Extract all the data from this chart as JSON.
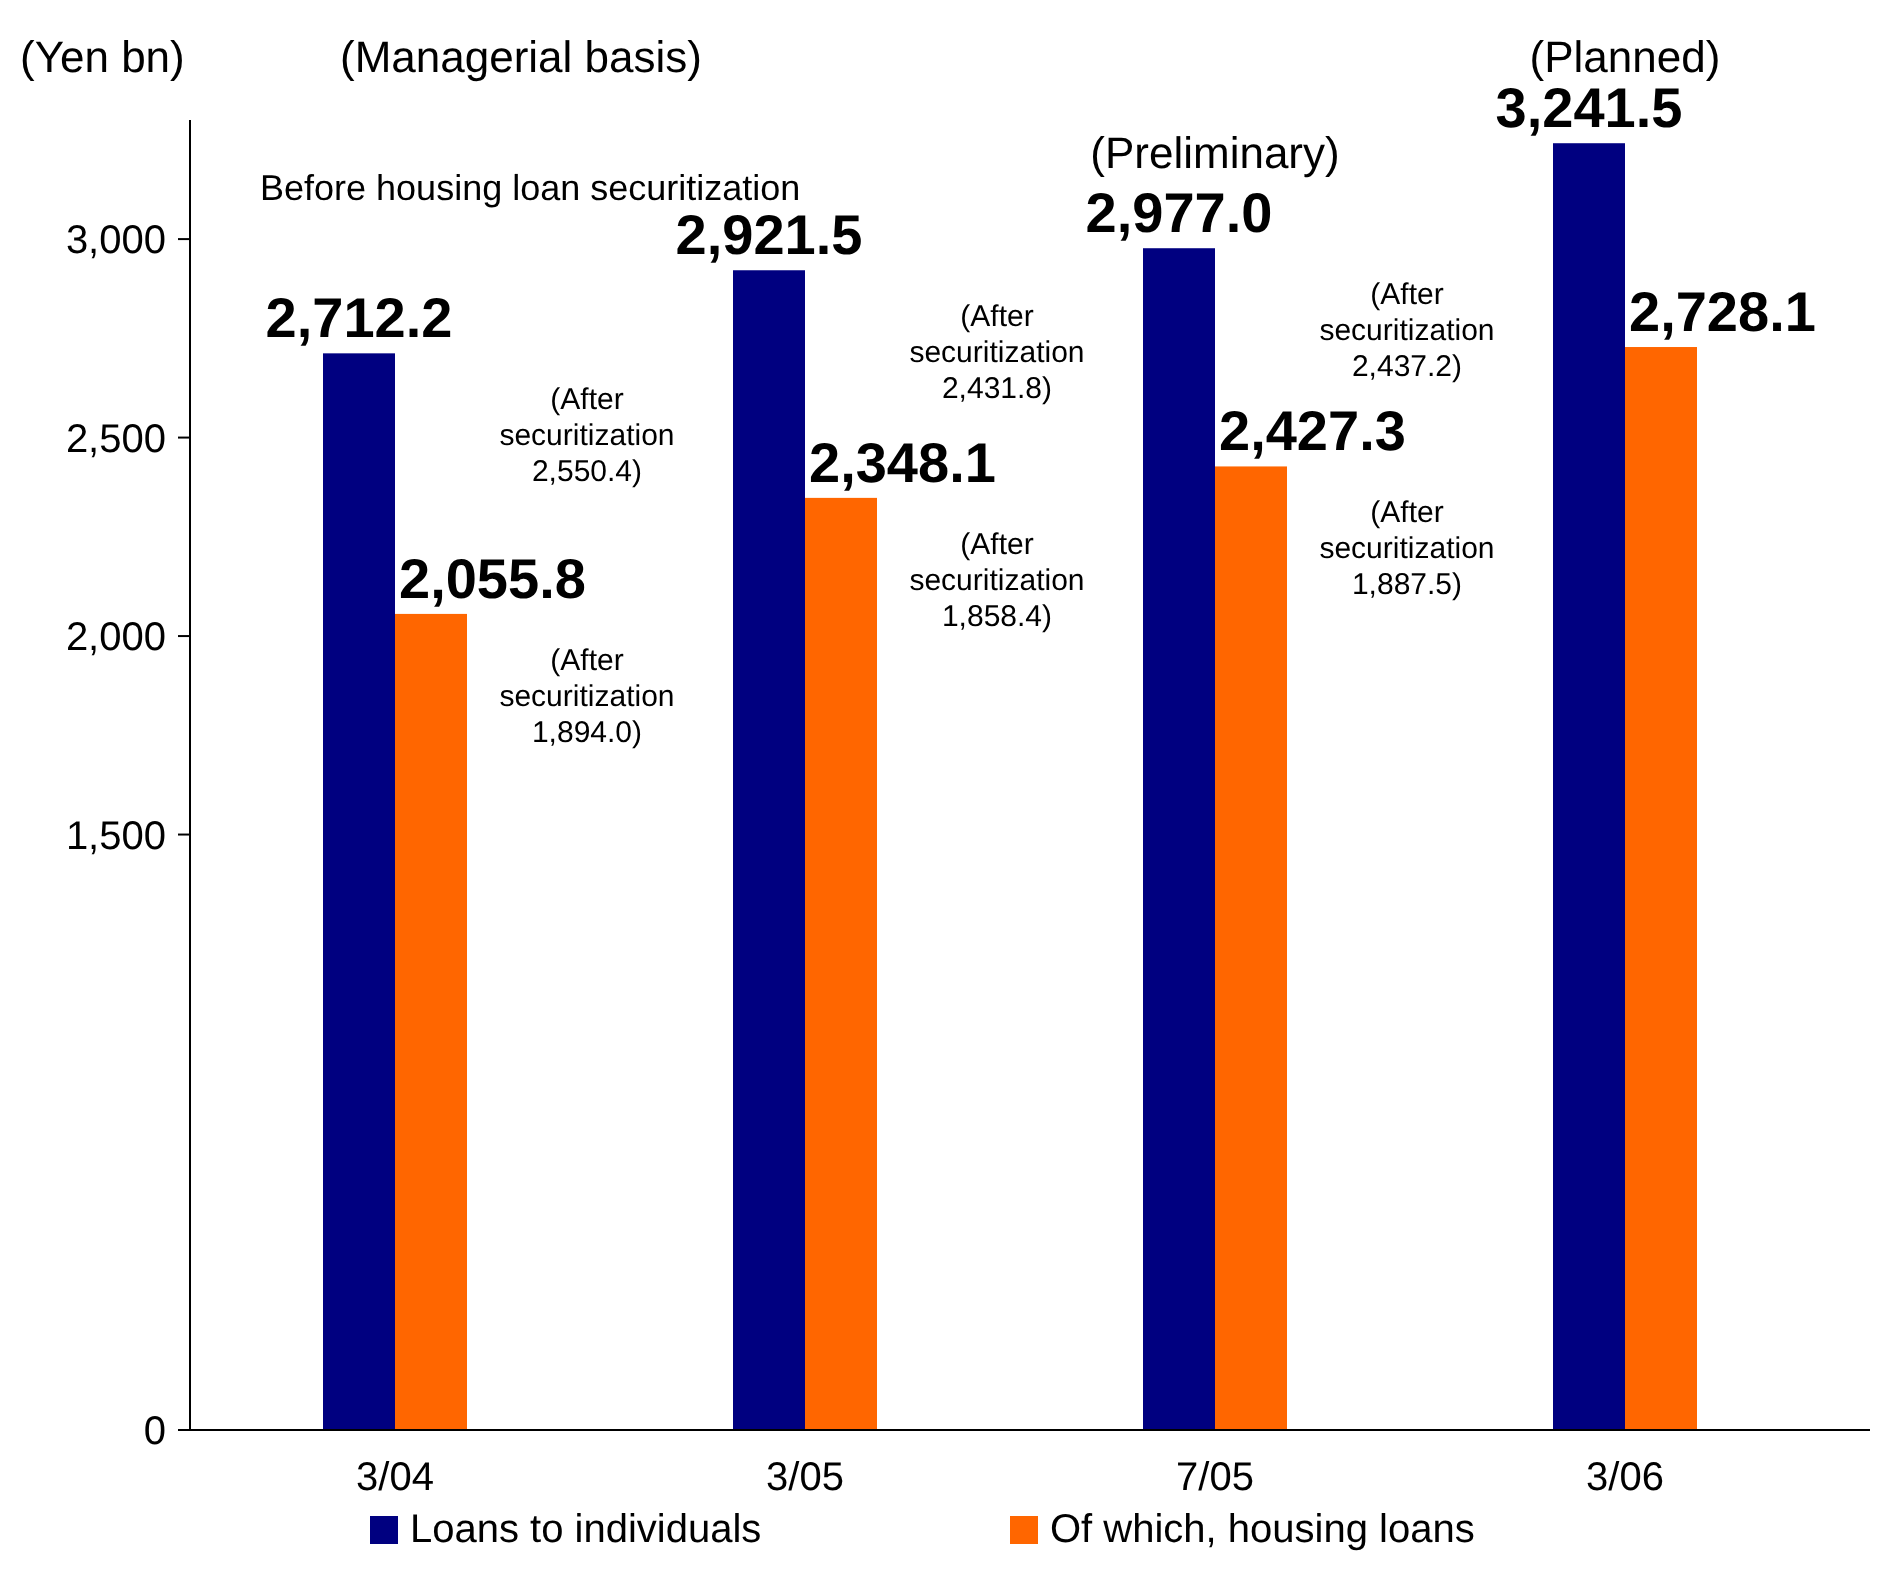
{
  "chart_data": {
    "type": "bar",
    "ylabel": "(Yen bn)",
    "categories": [
      "3/04",
      "3/05",
      "7/05",
      "3/06"
    ],
    "series": [
      {
        "name": "Loans to individuals",
        "color": "#000080",
        "values": [
          2712.2,
          2921.5,
          2977.0,
          3241.5
        ],
        "value_labels": [
          "2,712.2",
          "2,921.5",
          "2,977.0",
          "3,241.5"
        ]
      },
      {
        "name": "Of which, housing loans",
        "color": "#ff6600",
        "values": [
          2055.8,
          2348.1,
          2427.3,
          2728.1
        ],
        "value_labels": [
          "2,055.8",
          "2,348.1",
          "2,427.3",
          "2,728.1"
        ]
      }
    ],
    "ylim": [
      0,
      3300
    ],
    "yticks": [
      0,
      {
        "value": 1500,
        "label": "1,500"
      },
      {
        "value": 2000,
        "label": "2,000"
      },
      {
        "value": 2500,
        "label": "2,500"
      },
      {
        "value": 3000,
        "label": "3,000"
      }
    ],
    "legend": "bottom",
    "annotations": [
      "(Managerial basis)",
      "Before housing loan securitization",
      "(Preliminary)",
      "(Planned)",
      "(After securitization 2,550.4)",
      "(After securitization 1,894.0)",
      "(After securitization 2,431.8)",
      "(After securitization 1,858.4)",
      "(After securitization 2,437.2)",
      "(After securitization 1,887.5)"
    ]
  }
}
